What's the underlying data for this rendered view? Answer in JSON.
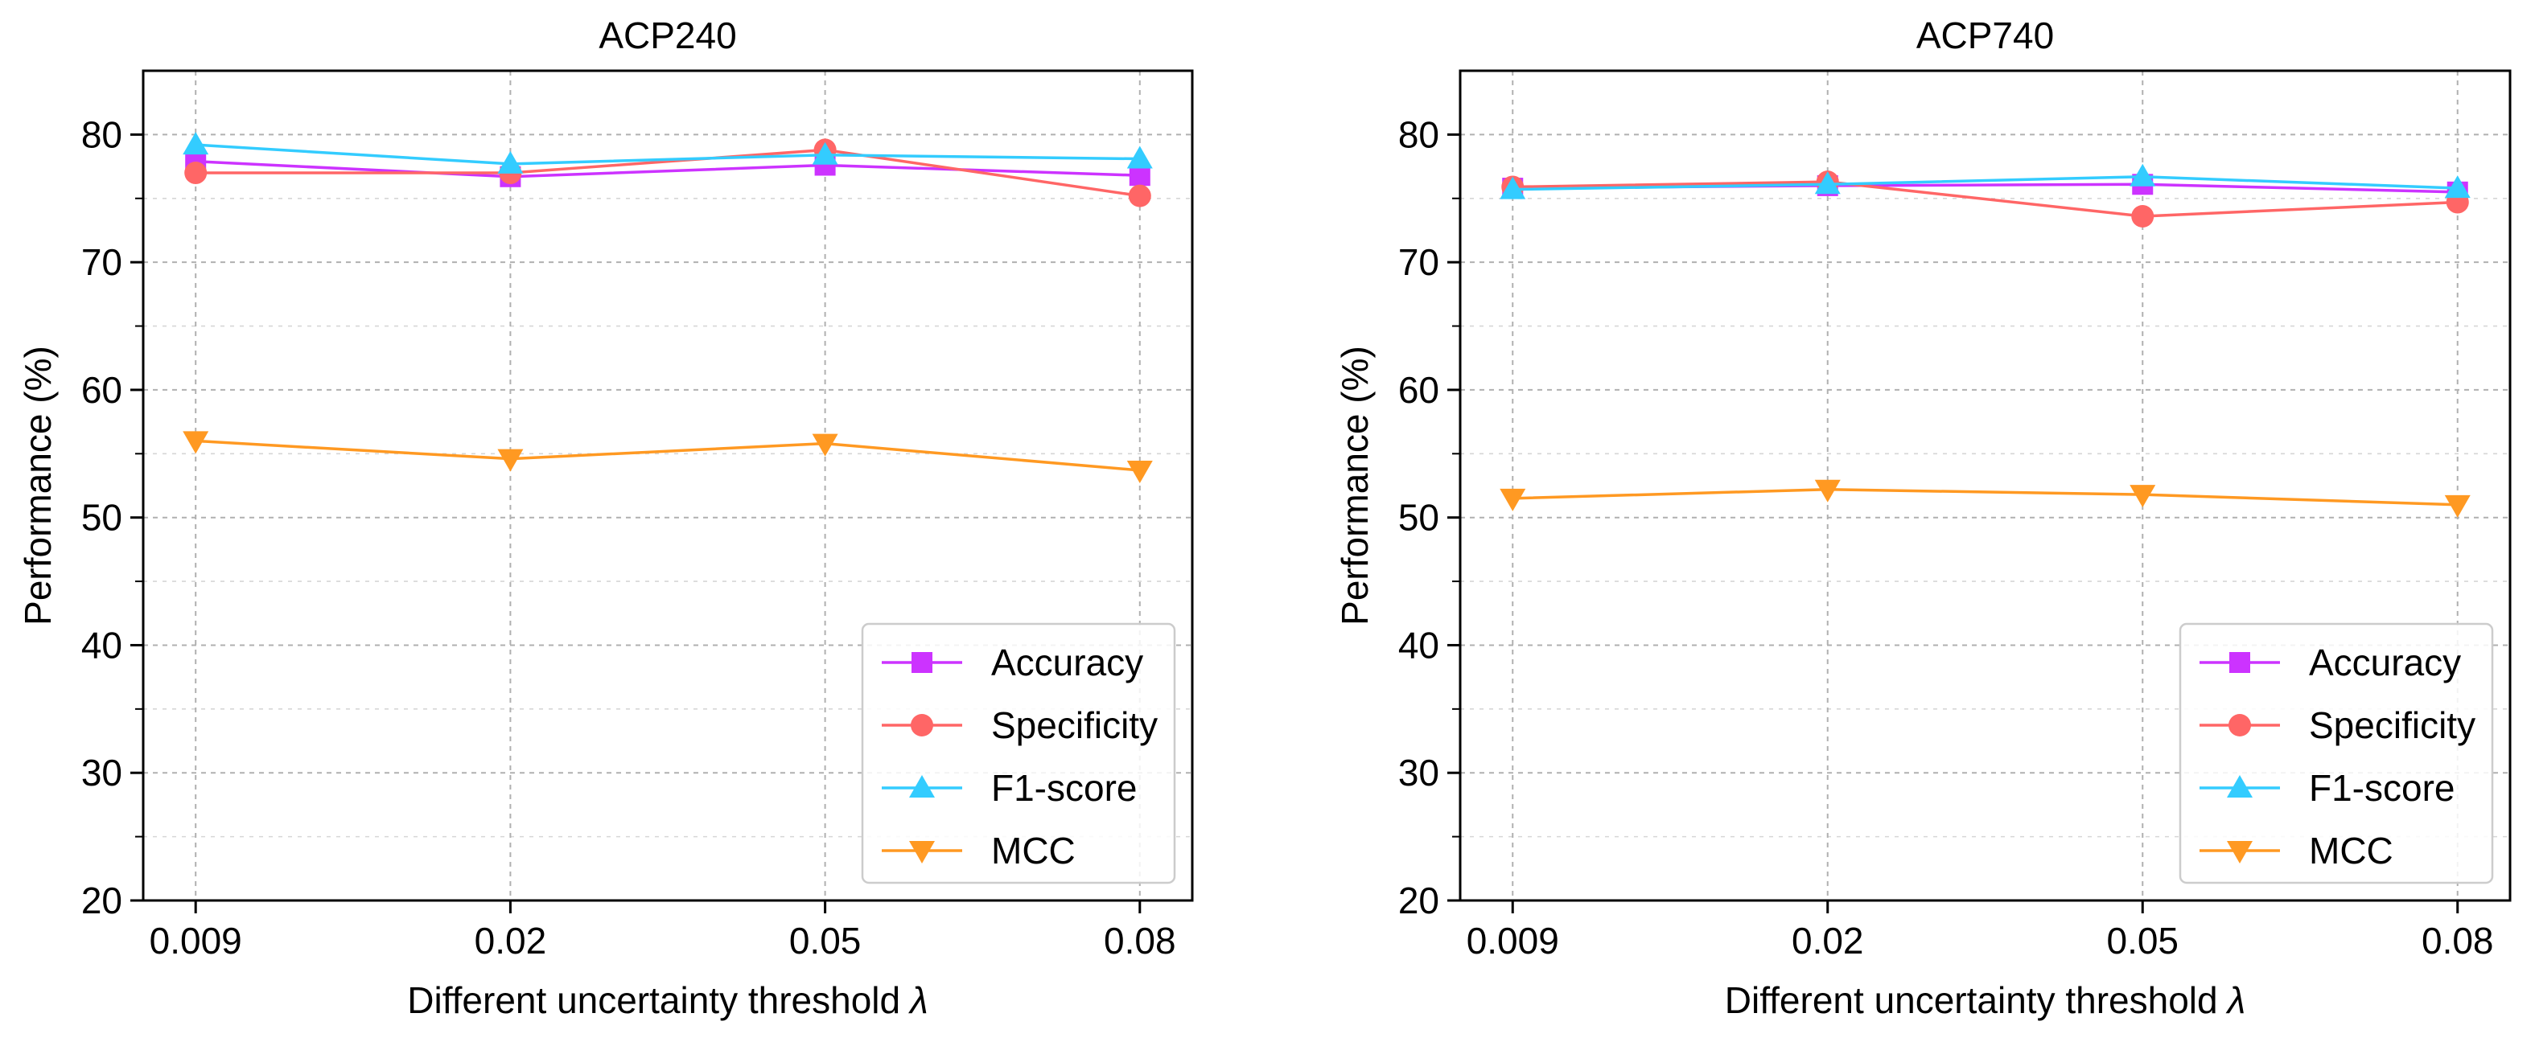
{
  "chart_data": [
    {
      "type": "line",
      "title": "ACP240",
      "xlabel": "Different uncertainty threshold",
      "xlabel_symbol": "λ",
      "ylabel": "Performance (%)",
      "categories": [
        "0.009",
        "0.02",
        "0.05",
        "0.08"
      ],
      "ylim": [
        20,
        85
      ],
      "yticks": [
        20,
        30,
        40,
        50,
        60,
        70,
        80
      ],
      "grid": true,
      "legend_position": "bottom-right",
      "series": [
        {
          "name": "Accuracy",
          "color": "#cc33ff",
          "marker": "square",
          "values": [
            77.9,
            76.7,
            77.6,
            76.8
          ]
        },
        {
          "name": "Specificity",
          "color": "#ff6666",
          "marker": "circle",
          "values": [
            77.0,
            77.0,
            78.8,
            75.2
          ]
        },
        {
          "name": "F1-score",
          "color": "#33ccff",
          "marker": "triangle-up",
          "values": [
            79.2,
            77.7,
            78.4,
            78.1
          ]
        },
        {
          "name": "MCC",
          "color": "#ff9922",
          "marker": "triangle-down",
          "values": [
            56.0,
            54.6,
            55.8,
            53.7
          ]
        }
      ]
    },
    {
      "type": "line",
      "title": "ACP740",
      "xlabel": "Different uncertainty threshold",
      "xlabel_symbol": "λ",
      "ylabel": "Performance (%)",
      "categories": [
        "0.009",
        "0.02",
        "0.05",
        "0.08"
      ],
      "ylim": [
        20,
        85
      ],
      "yticks": [
        20,
        30,
        40,
        50,
        60,
        70,
        80
      ],
      "grid": true,
      "legend_position": "bottom-right",
      "series": [
        {
          "name": "Accuracy",
          "color": "#cc33ff",
          "marker": "square",
          "values": [
            75.8,
            76.0,
            76.1,
            75.5
          ]
        },
        {
          "name": "Specificity",
          "color": "#ff6666",
          "marker": "circle",
          "values": [
            75.9,
            76.3,
            73.6,
            74.7
          ]
        },
        {
          "name": "F1-score",
          "color": "#33ccff",
          "marker": "triangle-up",
          "values": [
            75.7,
            76.1,
            76.7,
            75.8
          ]
        },
        {
          "name": "MCC",
          "color": "#ff9922",
          "marker": "triangle-down",
          "values": [
            51.5,
            52.2,
            51.8,
            51.0
          ]
        }
      ]
    }
  ]
}
